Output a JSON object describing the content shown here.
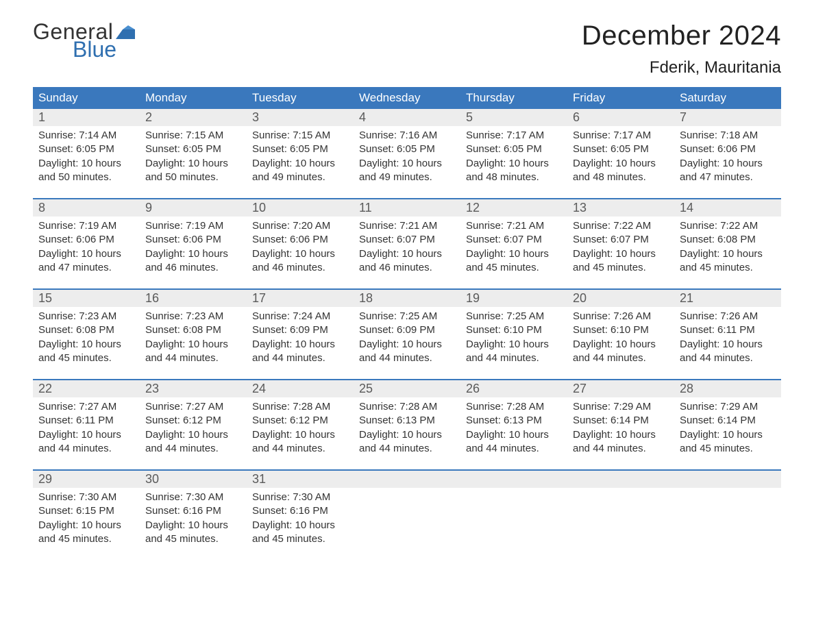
{
  "logo": {
    "general": "General",
    "blue": "Blue"
  },
  "title": "December 2024",
  "location": "Fderik, Mauritania",
  "colors": {
    "header_bg": "#3a78bd",
    "header_text": "#ffffff",
    "daynum_bg": "#ededed",
    "daynum_text": "#5a5a5a",
    "body_text": "#333333",
    "logo_blue": "#2f6fb0",
    "week_border": "#3a78bd",
    "page_bg": "#ffffff"
  },
  "typography": {
    "title_fontsize": 40,
    "location_fontsize": 24,
    "weekday_fontsize": 17,
    "daynum_fontsize": 18,
    "body_fontsize": 15,
    "logo_fontsize": 32
  },
  "weekdays": [
    "Sunday",
    "Monday",
    "Tuesday",
    "Wednesday",
    "Thursday",
    "Friday",
    "Saturday"
  ],
  "weeks": [
    [
      {
        "n": "1",
        "sunrise": "Sunrise: 7:14 AM",
        "sunset": "Sunset: 6:05 PM",
        "d1": "Daylight: 10 hours",
        "d2": "and 50 minutes."
      },
      {
        "n": "2",
        "sunrise": "Sunrise: 7:15 AM",
        "sunset": "Sunset: 6:05 PM",
        "d1": "Daylight: 10 hours",
        "d2": "and 50 minutes."
      },
      {
        "n": "3",
        "sunrise": "Sunrise: 7:15 AM",
        "sunset": "Sunset: 6:05 PM",
        "d1": "Daylight: 10 hours",
        "d2": "and 49 minutes."
      },
      {
        "n": "4",
        "sunrise": "Sunrise: 7:16 AM",
        "sunset": "Sunset: 6:05 PM",
        "d1": "Daylight: 10 hours",
        "d2": "and 49 minutes."
      },
      {
        "n": "5",
        "sunrise": "Sunrise: 7:17 AM",
        "sunset": "Sunset: 6:05 PM",
        "d1": "Daylight: 10 hours",
        "d2": "and 48 minutes."
      },
      {
        "n": "6",
        "sunrise": "Sunrise: 7:17 AM",
        "sunset": "Sunset: 6:05 PM",
        "d1": "Daylight: 10 hours",
        "d2": "and 48 minutes."
      },
      {
        "n": "7",
        "sunrise": "Sunrise: 7:18 AM",
        "sunset": "Sunset: 6:06 PM",
        "d1": "Daylight: 10 hours",
        "d2": "and 47 minutes."
      }
    ],
    [
      {
        "n": "8",
        "sunrise": "Sunrise: 7:19 AM",
        "sunset": "Sunset: 6:06 PM",
        "d1": "Daylight: 10 hours",
        "d2": "and 47 minutes."
      },
      {
        "n": "9",
        "sunrise": "Sunrise: 7:19 AM",
        "sunset": "Sunset: 6:06 PM",
        "d1": "Daylight: 10 hours",
        "d2": "and 46 minutes."
      },
      {
        "n": "10",
        "sunrise": "Sunrise: 7:20 AM",
        "sunset": "Sunset: 6:06 PM",
        "d1": "Daylight: 10 hours",
        "d2": "and 46 minutes."
      },
      {
        "n": "11",
        "sunrise": "Sunrise: 7:21 AM",
        "sunset": "Sunset: 6:07 PM",
        "d1": "Daylight: 10 hours",
        "d2": "and 46 minutes."
      },
      {
        "n": "12",
        "sunrise": "Sunrise: 7:21 AM",
        "sunset": "Sunset: 6:07 PM",
        "d1": "Daylight: 10 hours",
        "d2": "and 45 minutes."
      },
      {
        "n": "13",
        "sunrise": "Sunrise: 7:22 AM",
        "sunset": "Sunset: 6:07 PM",
        "d1": "Daylight: 10 hours",
        "d2": "and 45 minutes."
      },
      {
        "n": "14",
        "sunrise": "Sunrise: 7:22 AM",
        "sunset": "Sunset: 6:08 PM",
        "d1": "Daylight: 10 hours",
        "d2": "and 45 minutes."
      }
    ],
    [
      {
        "n": "15",
        "sunrise": "Sunrise: 7:23 AM",
        "sunset": "Sunset: 6:08 PM",
        "d1": "Daylight: 10 hours",
        "d2": "and 45 minutes."
      },
      {
        "n": "16",
        "sunrise": "Sunrise: 7:23 AM",
        "sunset": "Sunset: 6:08 PM",
        "d1": "Daylight: 10 hours",
        "d2": "and 44 minutes."
      },
      {
        "n": "17",
        "sunrise": "Sunrise: 7:24 AM",
        "sunset": "Sunset: 6:09 PM",
        "d1": "Daylight: 10 hours",
        "d2": "and 44 minutes."
      },
      {
        "n": "18",
        "sunrise": "Sunrise: 7:25 AM",
        "sunset": "Sunset: 6:09 PM",
        "d1": "Daylight: 10 hours",
        "d2": "and 44 minutes."
      },
      {
        "n": "19",
        "sunrise": "Sunrise: 7:25 AM",
        "sunset": "Sunset: 6:10 PM",
        "d1": "Daylight: 10 hours",
        "d2": "and 44 minutes."
      },
      {
        "n": "20",
        "sunrise": "Sunrise: 7:26 AM",
        "sunset": "Sunset: 6:10 PM",
        "d1": "Daylight: 10 hours",
        "d2": "and 44 minutes."
      },
      {
        "n": "21",
        "sunrise": "Sunrise: 7:26 AM",
        "sunset": "Sunset: 6:11 PM",
        "d1": "Daylight: 10 hours",
        "d2": "and 44 minutes."
      }
    ],
    [
      {
        "n": "22",
        "sunrise": "Sunrise: 7:27 AM",
        "sunset": "Sunset: 6:11 PM",
        "d1": "Daylight: 10 hours",
        "d2": "and 44 minutes."
      },
      {
        "n": "23",
        "sunrise": "Sunrise: 7:27 AM",
        "sunset": "Sunset: 6:12 PM",
        "d1": "Daylight: 10 hours",
        "d2": "and 44 minutes."
      },
      {
        "n": "24",
        "sunrise": "Sunrise: 7:28 AM",
        "sunset": "Sunset: 6:12 PM",
        "d1": "Daylight: 10 hours",
        "d2": "and 44 minutes."
      },
      {
        "n": "25",
        "sunrise": "Sunrise: 7:28 AM",
        "sunset": "Sunset: 6:13 PM",
        "d1": "Daylight: 10 hours",
        "d2": "and 44 minutes."
      },
      {
        "n": "26",
        "sunrise": "Sunrise: 7:28 AM",
        "sunset": "Sunset: 6:13 PM",
        "d1": "Daylight: 10 hours",
        "d2": "and 44 minutes."
      },
      {
        "n": "27",
        "sunrise": "Sunrise: 7:29 AM",
        "sunset": "Sunset: 6:14 PM",
        "d1": "Daylight: 10 hours",
        "d2": "and 44 minutes."
      },
      {
        "n": "28",
        "sunrise": "Sunrise: 7:29 AM",
        "sunset": "Sunset: 6:14 PM",
        "d1": "Daylight: 10 hours",
        "d2": "and 45 minutes."
      }
    ],
    [
      {
        "n": "29",
        "sunrise": "Sunrise: 7:30 AM",
        "sunset": "Sunset: 6:15 PM",
        "d1": "Daylight: 10 hours",
        "d2": "and 45 minutes."
      },
      {
        "n": "30",
        "sunrise": "Sunrise: 7:30 AM",
        "sunset": "Sunset: 6:16 PM",
        "d1": "Daylight: 10 hours",
        "d2": "and 45 minutes."
      },
      {
        "n": "31",
        "sunrise": "Sunrise: 7:30 AM",
        "sunset": "Sunset: 6:16 PM",
        "d1": "Daylight: 10 hours",
        "d2": "and 45 minutes."
      },
      {
        "n": "",
        "sunrise": "",
        "sunset": "",
        "d1": "",
        "d2": ""
      },
      {
        "n": "",
        "sunrise": "",
        "sunset": "",
        "d1": "",
        "d2": ""
      },
      {
        "n": "",
        "sunrise": "",
        "sunset": "",
        "d1": "",
        "d2": ""
      },
      {
        "n": "",
        "sunrise": "",
        "sunset": "",
        "d1": "",
        "d2": ""
      }
    ]
  ]
}
